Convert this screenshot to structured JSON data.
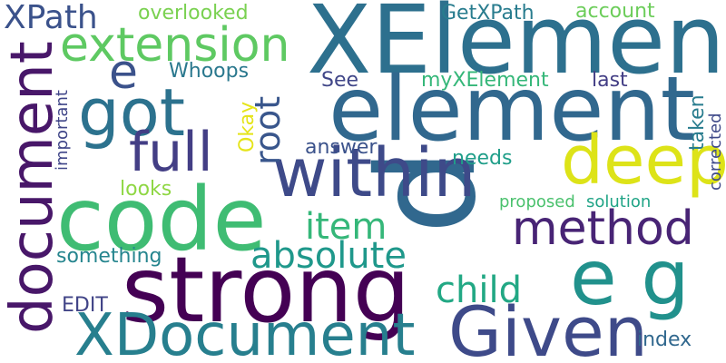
{
  "words": [
    {
      "text": "p",
      "color": "#31688e",
      "rotate": true
    },
    {
      "text": "XElement",
      "color": "#2d708e",
      "rotate": false
    },
    {
      "text": "element",
      "color": "#31688e",
      "rotate": false
    },
    {
      "text": "code",
      "color": "#3fbc73",
      "rotate": false
    },
    {
      "text": "strong",
      "color": "#440154",
      "rotate": false
    },
    {
      "text": "e g",
      "color": "#21918c",
      "rotate": false
    },
    {
      "text": "document",
      "color": "#481769",
      "rotate": true
    },
    {
      "text": "within",
      "color": "#3e4a89",
      "rotate": false
    },
    {
      "text": "deep",
      "color": "#dde318",
      "rotate": false
    },
    {
      "text": "Given",
      "color": "#3e4a89",
      "rotate": false
    },
    {
      "text": "XDocument",
      "color": "#277f8e",
      "rotate": false
    },
    {
      "text": "got",
      "color": "#2c728e",
      "rotate": false
    },
    {
      "text": "extension",
      "color": "#5ec962",
      "rotate": false
    },
    {
      "text": "method",
      "color": "#482475",
      "rotate": false
    },
    {
      "text": "full",
      "color": "#433e85",
      "rotate": false
    },
    {
      "text": "absolute",
      "color": "#1f988b",
      "rotate": false
    },
    {
      "text": "child",
      "color": "#22a884",
      "rotate": false
    },
    {
      "text": "item",
      "color": "#35b779",
      "rotate": false
    },
    {
      "text": "XPath",
      "color": "#3b528b",
      "rotate": false
    },
    {
      "text": "e",
      "color": "#3b528b",
      "rotate": false
    },
    {
      "text": "root",
      "color": "#39568c",
      "rotate": true
    },
    {
      "text": "overlooked",
      "color": "#7ad151",
      "rotate": false
    },
    {
      "text": "GetXPath",
      "color": "#287c8e",
      "rotate": false
    },
    {
      "text": "account",
      "color": "#6ccd5a",
      "rotate": false
    },
    {
      "text": "myXElement",
      "color": "#35b779",
      "rotate": false
    },
    {
      "text": "last",
      "color": "#433e85",
      "rotate": false
    },
    {
      "text": "See",
      "color": "#404688",
      "rotate": false
    },
    {
      "text": "Whoops",
      "color": "#2a788e",
      "rotate": false
    },
    {
      "text": "Okay",
      "color": "#e5e419",
      "rotate": true
    },
    {
      "text": "answer",
      "color": "#3b528b",
      "rotate": false
    },
    {
      "text": "needs",
      "color": "#1f9e89",
      "rotate": false
    },
    {
      "text": "taken",
      "color": "#287c8e",
      "rotate": true
    },
    {
      "text": "corrected",
      "color": "#3e4989",
      "rotate": true
    },
    {
      "text": "important",
      "color": "#404688",
      "rotate": true
    },
    {
      "text": "looks",
      "color": "#8fd744",
      "rotate": false
    },
    {
      "text": "proposed",
      "color": "#4ac16d",
      "rotate": false
    },
    {
      "text": "solution",
      "color": "#20a486",
      "rotate": false
    },
    {
      "text": "something",
      "color": "#25858e",
      "rotate": false
    },
    {
      "text": "EDIT",
      "color": "#414487",
      "rotate": false
    },
    {
      "text": "index",
      "color": "#31688e",
      "rotate": false
    }
  ]
}
